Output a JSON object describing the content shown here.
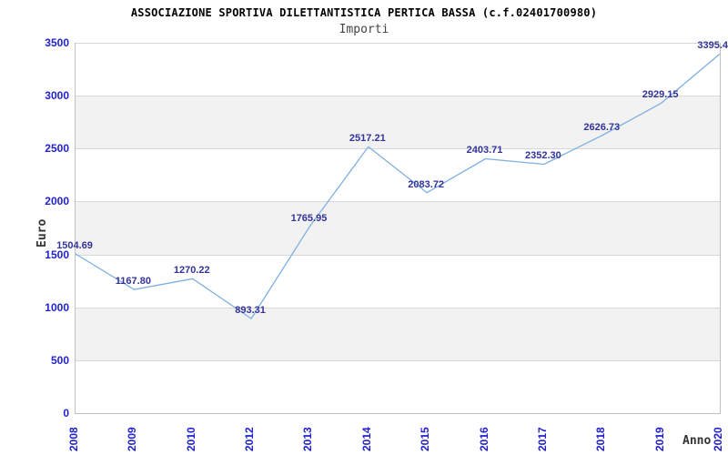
{
  "chart_data": {
    "type": "line",
    "title": "ASSOCIAZIONE SPORTIVA DILETTANTISTICA PERTICA BASSA (c.f.02401700980)",
    "subtitle": "Importi",
    "xlabel": "Anno",
    "ylabel": "Euro",
    "categories": [
      "2008",
      "2009",
      "2010",
      "2012",
      "2013",
      "2014",
      "2015",
      "2016",
      "2017",
      "2018",
      "2019",
      "2020"
    ],
    "values": [
      1504.69,
      1167.8,
      1270.22,
      893.31,
      1765.95,
      2517.21,
      2083.72,
      2403.71,
      2352.3,
      2626.73,
      2929.15,
      3395.4
    ],
    "point_labels": [
      "1504.69",
      "1167.80",
      "1270.22",
      "893.31",
      "1765.95",
      "2517.21",
      "2083.72",
      "2403.71",
      "2352.30",
      "2626.73",
      "2929.15",
      "3395.4"
    ],
    "ylim": [
      0,
      3500
    ],
    "y_ticks": [
      0,
      500,
      1000,
      1500,
      2000,
      2500,
      3000,
      3500
    ],
    "grid": "horizontal",
    "alternating_bands": true,
    "legend": "none",
    "colors": {
      "line": "#7fb0e0",
      "tick_text": "#2222cc",
      "point_label_text": "#333399",
      "band_fill": "#f2f2f2",
      "grid_line": "#d8d8d8",
      "plot_border": "#c0c0c0",
      "title_text": "#000000",
      "subtitle_text": "#444444",
      "axis_title_text": "#333333"
    }
  }
}
